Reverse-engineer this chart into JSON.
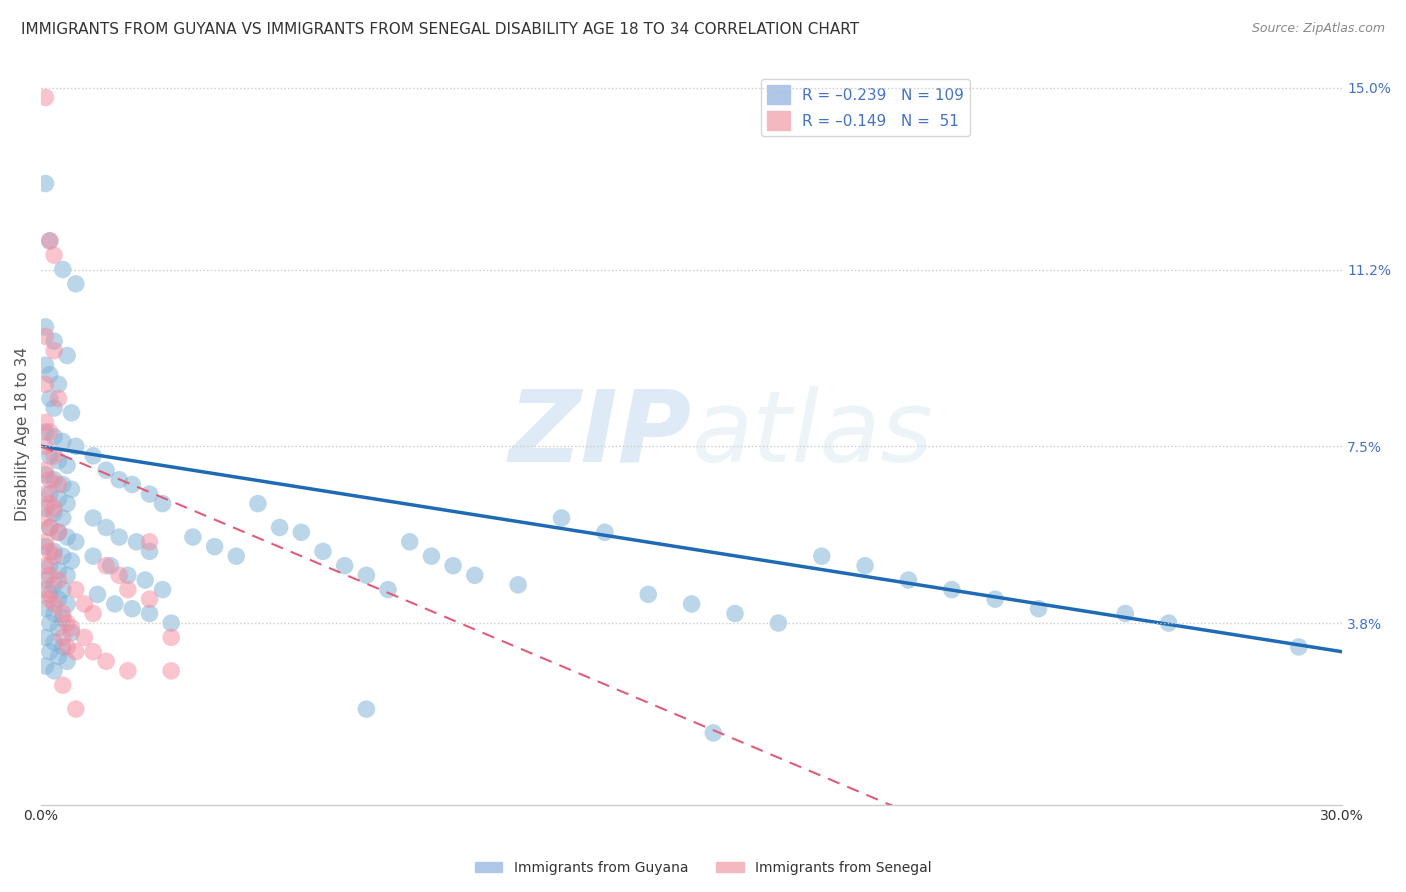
{
  "title": "IMMIGRANTS FROM GUYANA VS IMMIGRANTS FROM SENEGAL DISABILITY AGE 18 TO 34 CORRELATION CHART",
  "source": "Source: ZipAtlas.com",
  "ylabel": "Disability Age 18 to 34",
  "xlim": [
    0.0,
    0.3
  ],
  "ylim": [
    0.0,
    0.155
  ],
  "right_ytick_labels": [
    "15.0%",
    "11.2%",
    "7.5%",
    "3.8%"
  ],
  "right_ytick_vals": [
    0.15,
    0.112,
    0.075,
    0.038
  ],
  "guyana_scatter_color": "#7bafd4",
  "senegal_scatter_color": "#f48a9c",
  "guyana_line_color": "#1f6ab5",
  "senegal_line_color": "#e05c7a",
  "watermark_zip": "ZIP",
  "watermark_atlas": "atlas",
  "background_color": "#ffffff",
  "grid_color": "#cccccc",
  "title_fontsize": 11,
  "axis_label_fontsize": 11,
  "tick_fontsize": 10,
  "legend_fontsize": 11,
  "guyana_points": [
    [
      0.001,
      0.13
    ],
    [
      0.002,
      0.118
    ],
    [
      0.005,
      0.112
    ],
    [
      0.008,
      0.109
    ],
    [
      0.001,
      0.1
    ],
    [
      0.003,
      0.097
    ],
    [
      0.006,
      0.094
    ],
    [
      0.001,
      0.092
    ],
    [
      0.002,
      0.09
    ],
    [
      0.004,
      0.088
    ],
    [
      0.002,
      0.085
    ],
    [
      0.003,
      0.083
    ],
    [
      0.007,
      0.082
    ],
    [
      0.001,
      0.078
    ],
    [
      0.003,
      0.077
    ],
    [
      0.005,
      0.076
    ],
    [
      0.008,
      0.075
    ],
    [
      0.002,
      0.073
    ],
    [
      0.004,
      0.072
    ],
    [
      0.006,
      0.071
    ],
    [
      0.001,
      0.069
    ],
    [
      0.003,
      0.068
    ],
    [
      0.005,
      0.067
    ],
    [
      0.007,
      0.066
    ],
    [
      0.002,
      0.065
    ],
    [
      0.004,
      0.064
    ],
    [
      0.006,
      0.063
    ],
    [
      0.001,
      0.062
    ],
    [
      0.003,
      0.061
    ],
    [
      0.005,
      0.06
    ],
    [
      0.002,
      0.058
    ],
    [
      0.004,
      0.057
    ],
    [
      0.006,
      0.056
    ],
    [
      0.008,
      0.055
    ],
    [
      0.001,
      0.054
    ],
    [
      0.003,
      0.053
    ],
    [
      0.005,
      0.052
    ],
    [
      0.007,
      0.051
    ],
    [
      0.002,
      0.05
    ],
    [
      0.004,
      0.049
    ],
    [
      0.006,
      0.048
    ],
    [
      0.001,
      0.047
    ],
    [
      0.003,
      0.046
    ],
    [
      0.005,
      0.045
    ],
    [
      0.002,
      0.044
    ],
    [
      0.004,
      0.043
    ],
    [
      0.006,
      0.042
    ],
    [
      0.001,
      0.041
    ],
    [
      0.003,
      0.04
    ],
    [
      0.005,
      0.039
    ],
    [
      0.002,
      0.038
    ],
    [
      0.004,
      0.037
    ],
    [
      0.007,
      0.036
    ],
    [
      0.001,
      0.035
    ],
    [
      0.003,
      0.034
    ],
    [
      0.005,
      0.033
    ],
    [
      0.002,
      0.032
    ],
    [
      0.004,
      0.031
    ],
    [
      0.006,
      0.03
    ],
    [
      0.001,
      0.029
    ],
    [
      0.003,
      0.028
    ],
    [
      0.012,
      0.073
    ],
    [
      0.015,
      0.07
    ],
    [
      0.018,
      0.068
    ],
    [
      0.021,
      0.067
    ],
    [
      0.025,
      0.065
    ],
    [
      0.028,
      0.063
    ],
    [
      0.012,
      0.06
    ],
    [
      0.015,
      0.058
    ],
    [
      0.018,
      0.056
    ],
    [
      0.022,
      0.055
    ],
    [
      0.025,
      0.053
    ],
    [
      0.012,
      0.052
    ],
    [
      0.016,
      0.05
    ],
    [
      0.02,
      0.048
    ],
    [
      0.024,
      0.047
    ],
    [
      0.028,
      0.045
    ],
    [
      0.013,
      0.044
    ],
    [
      0.017,
      0.042
    ],
    [
      0.021,
      0.041
    ],
    [
      0.025,
      0.04
    ],
    [
      0.03,
      0.038
    ],
    [
      0.035,
      0.056
    ],
    [
      0.04,
      0.054
    ],
    [
      0.045,
      0.052
    ],
    [
      0.05,
      0.063
    ],
    [
      0.055,
      0.058
    ],
    [
      0.06,
      0.057
    ],
    [
      0.065,
      0.053
    ],
    [
      0.07,
      0.05
    ],
    [
      0.075,
      0.048
    ],
    [
      0.08,
      0.045
    ],
    [
      0.085,
      0.055
    ],
    [
      0.09,
      0.052
    ],
    [
      0.095,
      0.05
    ],
    [
      0.1,
      0.048
    ],
    [
      0.11,
      0.046
    ],
    [
      0.12,
      0.06
    ],
    [
      0.13,
      0.057
    ],
    [
      0.14,
      0.044
    ],
    [
      0.15,
      0.042
    ],
    [
      0.16,
      0.04
    ],
    [
      0.17,
      0.038
    ],
    [
      0.18,
      0.052
    ],
    [
      0.19,
      0.05
    ],
    [
      0.2,
      0.047
    ],
    [
      0.21,
      0.045
    ],
    [
      0.22,
      0.043
    ],
    [
      0.23,
      0.041
    ],
    [
      0.25,
      0.04
    ],
    [
      0.26,
      0.038
    ],
    [
      0.075,
      0.02
    ],
    [
      0.155,
      0.015
    ],
    [
      0.29,
      0.033
    ]
  ],
  "senegal_points": [
    [
      0.001,
      0.148
    ],
    [
      0.002,
      0.118
    ],
    [
      0.003,
      0.115
    ],
    [
      0.001,
      0.098
    ],
    [
      0.003,
      0.095
    ],
    [
      0.001,
      0.088
    ],
    [
      0.004,
      0.085
    ],
    [
      0.001,
      0.08
    ],
    [
      0.002,
      0.078
    ],
    [
      0.001,
      0.075
    ],
    [
      0.003,
      0.073
    ],
    [
      0.001,
      0.07
    ],
    [
      0.002,
      0.068
    ],
    [
      0.004,
      0.067
    ],
    [
      0.001,
      0.065
    ],
    [
      0.002,
      0.063
    ],
    [
      0.003,
      0.062
    ],
    [
      0.001,
      0.06
    ],
    [
      0.002,
      0.058
    ],
    [
      0.004,
      0.057
    ],
    [
      0.001,
      0.055
    ],
    [
      0.002,
      0.053
    ],
    [
      0.003,
      0.052
    ],
    [
      0.001,
      0.05
    ],
    [
      0.002,
      0.048
    ],
    [
      0.004,
      0.047
    ],
    [
      0.001,
      0.045
    ],
    [
      0.002,
      0.043
    ],
    [
      0.003,
      0.042
    ],
    [
      0.005,
      0.04
    ],
    [
      0.006,
      0.038
    ],
    [
      0.007,
      0.037
    ],
    [
      0.005,
      0.035
    ],
    [
      0.006,
      0.033
    ],
    [
      0.008,
      0.032
    ],
    [
      0.008,
      0.045
    ],
    [
      0.01,
      0.042
    ],
    [
      0.012,
      0.04
    ],
    [
      0.01,
      0.035
    ],
    [
      0.012,
      0.032
    ],
    [
      0.015,
      0.05
    ],
    [
      0.018,
      0.048
    ],
    [
      0.02,
      0.045
    ],
    [
      0.025,
      0.043
    ],
    [
      0.015,
      0.03
    ],
    [
      0.02,
      0.028
    ],
    [
      0.025,
      0.055
    ],
    [
      0.03,
      0.035
    ],
    [
      0.008,
      0.02
    ],
    [
      0.005,
      0.025
    ],
    [
      0.03,
      0.028
    ]
  ]
}
